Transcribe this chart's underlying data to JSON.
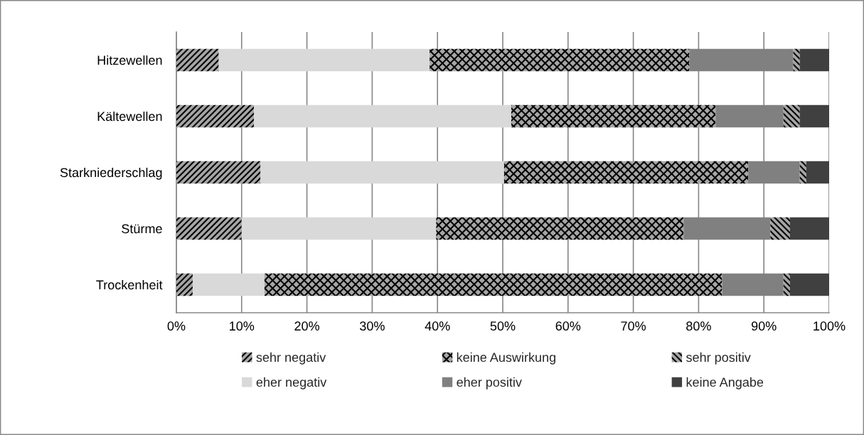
{
  "chart_data": {
    "type": "bar",
    "orientation": "horizontal",
    "stacked": true,
    "categories": [
      "Hitzewellen",
      "Kältewellen",
      "Starkniederschlag",
      "Stürme",
      "Trockenheit"
    ],
    "series": [
      {
        "name": "sehr negativ",
        "color": "#a6a6a6",
        "values": [
          6.5,
          11.9,
          12.9,
          10.0,
          2.5
        ]
      },
      {
        "name": "eher negativ",
        "color": "#d9d9d9",
        "values": [
          32.3,
          39.4,
          37.3,
          29.8,
          11.0
        ]
      },
      {
        "name": "keine Auswirkung",
        "color": "#a6a6a6",
        "values": [
          39.8,
          31.3,
          37.4,
          37.9,
          70.1
        ]
      },
      {
        "name": "eher positiv",
        "color": "#808080",
        "values": [
          15.9,
          10.4,
          7.9,
          13.3,
          9.4
        ]
      },
      {
        "name": "sehr positiv",
        "color": "#a6a6a6",
        "values": [
          1.0,
          2.5,
          1.0,
          3.0,
          1.0
        ]
      },
      {
        "name": "keine Angabe",
        "color": "#404040",
        "values": [
          4.5,
          4.5,
          3.5,
          6.0,
          6.0
        ]
      }
    ],
    "xlim": [
      0,
      100
    ],
    "xticks": [
      {
        "value": 0,
        "label": "0%"
      },
      {
        "value": 10,
        "label": "10%"
      },
      {
        "value": 20,
        "label": "20%"
      },
      {
        "value": 30,
        "label": "30%"
      },
      {
        "value": 40,
        "label": "40%"
      },
      {
        "value": 50,
        "label": "50%"
      },
      {
        "value": 60,
        "label": "60%"
      },
      {
        "value": 70,
        "label": "70%"
      },
      {
        "value": 80,
        "label": "80%"
      },
      {
        "value": 90,
        "label": "90%"
      },
      {
        "value": 100,
        "label": "100%"
      }
    ],
    "grid": "x",
    "legend": "bottom"
  }
}
